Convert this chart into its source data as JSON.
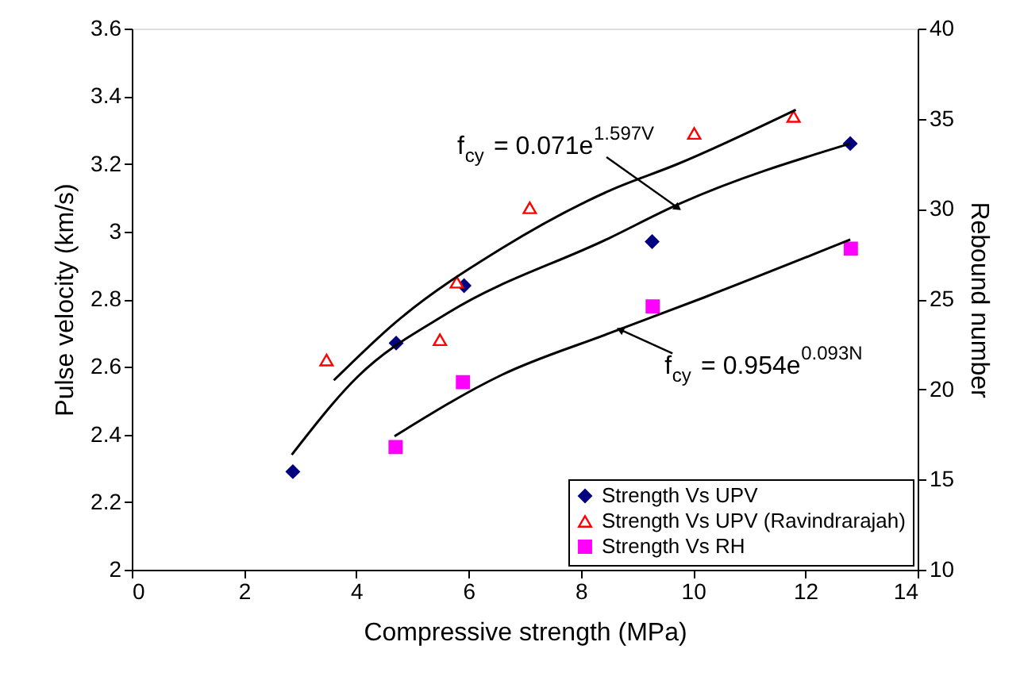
{
  "chart_data": {
    "type": "scatter",
    "xlabel": "Compressive strength (MPa)",
    "ylabel": "Pulse velocity (km/s)",
    "y2label": "Rebound number",
    "xlim": [
      0,
      14
    ],
    "xticks": [
      0,
      2,
      4,
      6,
      8,
      10,
      12,
      14
    ],
    "ylim": [
      2,
      3.6
    ],
    "yticks": [
      2,
      2.2,
      2.4,
      2.6,
      2.8,
      3,
      3.2,
      3.4,
      3.6
    ],
    "y2lim": [
      10,
      40
    ],
    "y2ticks": [
      10,
      15,
      20,
      25,
      30,
      35,
      40
    ],
    "grid": false,
    "legend": "bottom right",
    "series": [
      {
        "name": "Strength Vs UPV",
        "color": "#000080",
        "marker": "diamond",
        "x": [
          2.87,
          4.71,
          5.92,
          9.27,
          12.8
        ],
        "values": [
          2.29,
          2.67,
          2.84,
          2.97,
          3.26
        ]
      },
      {
        "name": "Strength Vs UPV (Ravindrarajah)",
        "color": "#ff0000",
        "marker": "triangle",
        "x": [
          3.47,
          5.49,
          5.79,
          7.09,
          10.02,
          11.79
        ],
        "values": [
          2.62,
          2.68,
          2.85,
          3.07,
          3.29,
          3.34
        ]
      },
      {
        "name": "Strength Vs RH",
        "color": "#ff00ff",
        "marker": "square",
        "axis": "y2",
        "x": [
          4.7,
          5.9,
          9.28,
          12.81
        ],
        "values": [
          16.8,
          20.4,
          24.6,
          27.8
        ]
      },
      {
        "type": "line",
        "color": "#000000",
        "x": [
          3.6,
          4.69,
          6.59,
          8.5,
          9.73,
          11.83
        ],
        "values": [
          2.56,
          2.73,
          2.95,
          3.12,
          3.2,
          3.36
        ]
      },
      {
        "type": "line",
        "color": "#000000",
        "x": [
          2.85,
          4.02,
          5.64,
          8.5,
          9.73,
          12.8
        ],
        "values": [
          2.34,
          2.57,
          2.76,
          2.98,
          3.08,
          3.26
        ]
      },
      {
        "type": "line",
        "color": "#000000",
        "axis": "y2",
        "x": [
          4.68,
          6.59,
          8.5,
          10.2,
          12.8
        ],
        "values": [
          17.4,
          20.8,
          23.1,
          25.1,
          28.3
        ]
      }
    ],
    "annotations": [
      {
        "text": "f$_{cy}$ = 0.071e$^{1.597V}$",
        "x": 9.73,
        "y": 3.07
      },
      {
        "text": "f$_{cy}$ = 0.954e$^{0.093N}$",
        "x": 8.7,
        "y": 2.71
      }
    ]
  }
}
